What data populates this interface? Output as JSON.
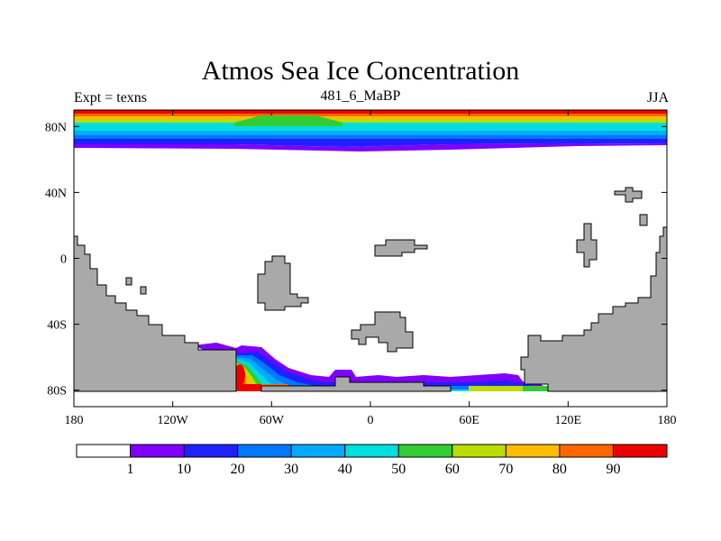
{
  "header": {
    "title": "Atmos Sea Ice Concentration",
    "left_label": "Expt = texns",
    "center_label": "481_6_MaBP",
    "right_label": "JJA"
  },
  "axes": {
    "x_ticks": [
      "180",
      "120W",
      "60W",
      "0",
      "60E",
      "120E",
      "180"
    ],
    "y_ticks": [
      "80N",
      "40N",
      "0",
      "40S",
      "80S"
    ]
  },
  "colors": {
    "land": "#a9a9a9",
    "levels": [
      "#ffffff",
      "#7f00ff",
      "#2020ff",
      "#0077ff",
      "#00aaff",
      "#00dddd",
      "#33cc33",
      "#bbdd00",
      "#ffbb00",
      "#ff6600",
      "#ee0000"
    ]
  },
  "colorbar": {
    "labels": [
      "1",
      "10",
      "20",
      "30",
      "40",
      "50",
      "60",
      "70",
      "80",
      "90"
    ]
  }
}
